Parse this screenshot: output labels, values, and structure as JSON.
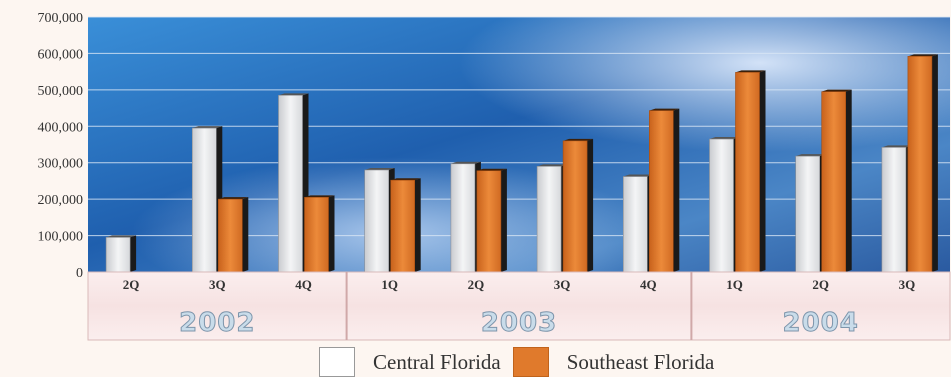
{
  "chart_data": {
    "type": "bar",
    "title": "",
    "xlabel": "",
    "ylabel": "",
    "ylim": [
      0,
      700000
    ],
    "yticks": [
      "0",
      "100,000",
      "200,000",
      "300,000",
      "400,000",
      "500,000",
      "600,000",
      "700,000"
    ],
    "categories": [
      "2Q",
      "3Q",
      "4Q",
      "1Q",
      "2Q",
      "3Q",
      "4Q",
      "1Q",
      "2Q",
      "3Q"
    ],
    "year_groups": [
      {
        "label": "2002",
        "count": 3
      },
      {
        "label": "2003",
        "count": 4
      },
      {
        "label": "2004",
        "count": 3
      }
    ],
    "series": [
      {
        "name": "Central Florida",
        "color": "#e9eaec",
        "values": [
          95000,
          395000,
          485000,
          280000,
          297000,
          290000,
          262000,
          365000,
          318000,
          342000
        ]
      },
      {
        "name": "Southeast Florida",
        "color": "#e07a2c",
        "values": [
          null,
          200000,
          205000,
          252000,
          278000,
          360000,
          443000,
          548000,
          495000,
          592000
        ]
      }
    ],
    "grid": true,
    "legend_position": "bottom"
  },
  "colors": {
    "background_accent": "#2a6fb5",
    "bar_a": "#e9eaec",
    "bar_b": "#e07a2c"
  }
}
